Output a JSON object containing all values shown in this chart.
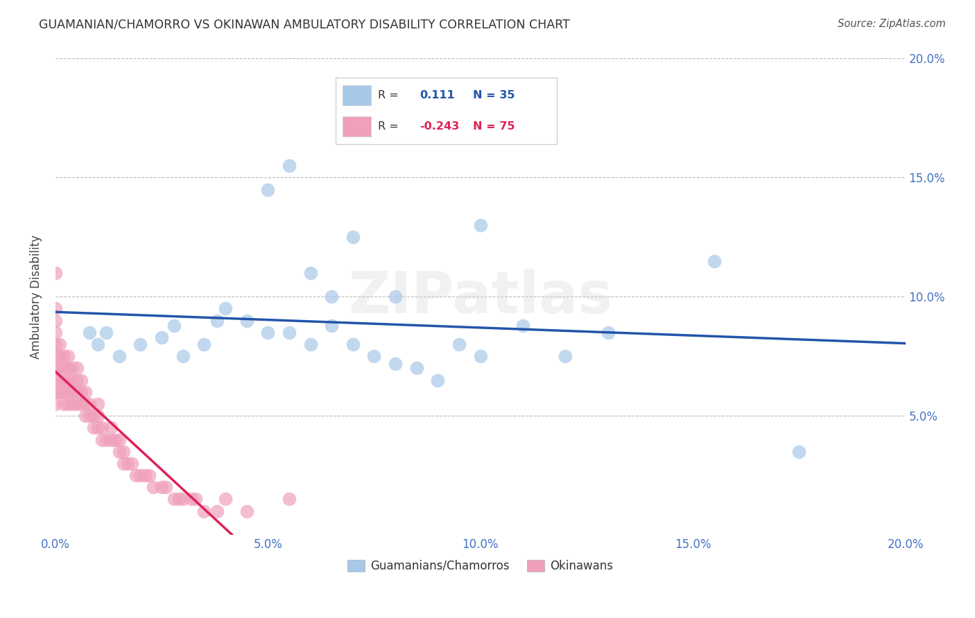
{
  "title": "GUAMANIAN/CHAMORRO VS OKINAWAN AMBULATORY DISABILITY CORRELATION CHART",
  "source": "Source: ZipAtlas.com",
  "ylabel": "Ambulatory Disability",
  "xmin": 0.0,
  "xmax": 0.2,
  "ymin": 0.0,
  "ymax": 0.2,
  "xticks": [
    0.0,
    0.05,
    0.1,
    0.15,
    0.2
  ],
  "yticks": [
    0.05,
    0.1,
    0.15,
    0.2
  ],
  "legend_labels": [
    "Guamanians/Chamorros",
    "Okinawans"
  ],
  "r_guam": 0.111,
  "n_guam": 35,
  "r_okin": -0.243,
  "n_okin": 75,
  "color_guam": "#a8c8e8",
  "color_okin": "#f0a0bc",
  "line_color_guam": "#2255aa",
  "line_color_okin": "#dd2255",
  "background_color": "#ffffff",
  "watermark": "ZIPatlas",
  "guam_x": [
    0.008,
    0.01,
    0.012,
    0.015,
    0.02,
    0.025,
    0.028,
    0.03,
    0.035,
    0.038,
    0.04,
    0.045,
    0.05,
    0.055,
    0.06,
    0.065,
    0.07,
    0.075,
    0.08,
    0.085,
    0.09,
    0.095,
    0.1,
    0.11,
    0.12,
    0.13,
    0.05,
    0.055,
    0.06,
    0.065,
    0.07,
    0.08,
    0.1,
    0.155,
    0.175
  ],
  "guam_y": [
    0.085,
    0.08,
    0.085,
    0.075,
    0.08,
    0.083,
    0.088,
    0.075,
    0.08,
    0.09,
    0.095,
    0.09,
    0.085,
    0.085,
    0.08,
    0.088,
    0.08,
    0.075,
    0.072,
    0.07,
    0.065,
    0.08,
    0.075,
    0.088,
    0.075,
    0.085,
    0.145,
    0.155,
    0.11,
    0.1,
    0.125,
    0.1,
    0.13,
    0.115,
    0.035
  ],
  "okin_x": [
    0.0,
    0.0,
    0.0,
    0.0,
    0.0,
    0.0,
    0.0,
    0.0,
    0.0,
    0.0,
    0.001,
    0.001,
    0.001,
    0.001,
    0.001,
    0.002,
    0.002,
    0.002,
    0.002,
    0.002,
    0.003,
    0.003,
    0.003,
    0.003,
    0.003,
    0.004,
    0.004,
    0.004,
    0.004,
    0.005,
    0.005,
    0.005,
    0.005,
    0.006,
    0.006,
    0.006,
    0.007,
    0.007,
    0.007,
    0.008,
    0.008,
    0.009,
    0.009,
    0.01,
    0.01,
    0.01,
    0.011,
    0.011,
    0.012,
    0.013,
    0.013,
    0.014,
    0.015,
    0.015,
    0.016,
    0.016,
    0.017,
    0.018,
    0.019,
    0.02,
    0.021,
    0.022,
    0.023,
    0.025,
    0.026,
    0.028,
    0.029,
    0.03,
    0.032,
    0.033,
    0.035,
    0.038,
    0.04,
    0.045,
    0.055
  ],
  "okin_y": [
    0.055,
    0.06,
    0.065,
    0.07,
    0.075,
    0.08,
    0.085,
    0.09,
    0.095,
    0.11,
    0.06,
    0.065,
    0.07,
    0.075,
    0.08,
    0.055,
    0.06,
    0.065,
    0.07,
    0.075,
    0.055,
    0.06,
    0.065,
    0.07,
    0.075,
    0.055,
    0.06,
    0.065,
    0.07,
    0.055,
    0.06,
    0.065,
    0.07,
    0.055,
    0.06,
    0.065,
    0.05,
    0.055,
    0.06,
    0.05,
    0.055,
    0.045,
    0.05,
    0.045,
    0.05,
    0.055,
    0.04,
    0.045,
    0.04,
    0.04,
    0.045,
    0.04,
    0.035,
    0.04,
    0.03,
    0.035,
    0.03,
    0.03,
    0.025,
    0.025,
    0.025,
    0.025,
    0.02,
    0.02,
    0.02,
    0.015,
    0.015,
    0.015,
    0.015,
    0.015,
    0.01,
    0.01,
    0.015,
    0.01,
    0.015
  ]
}
